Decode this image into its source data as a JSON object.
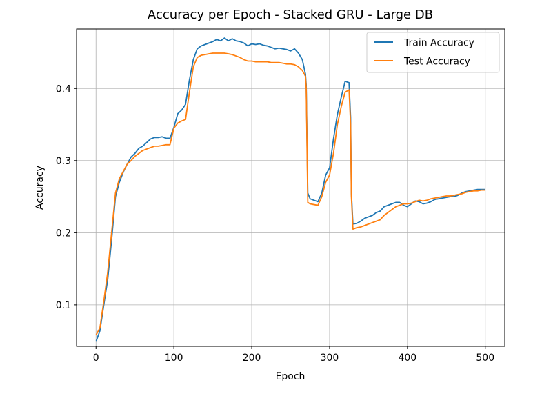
{
  "chart_data": {
    "type": "line",
    "title": "Accuracy per Epoch - Stacked GRU - Large DB",
    "xlabel": "Epoch",
    "ylabel": "Accuracy",
    "xlim": [
      -25,
      525
    ],
    "ylim": [
      0.0425,
      0.4825
    ],
    "xticks": [
      0,
      100,
      200,
      300,
      400,
      500
    ],
    "yticks": [
      0.1,
      0.2,
      0.3,
      0.4
    ],
    "xtick_labels": [
      "0",
      "100",
      "200",
      "300",
      "400",
      "500"
    ],
    "ytick_labels": [
      "0.1",
      "0.2",
      "0.3",
      "0.4"
    ],
    "grid": true,
    "legend_position": "top-right",
    "series": [
      {
        "name": "Train Accuracy",
        "color": "#1f77b4",
        "x": [
          0,
          5,
          10,
          15,
          20,
          25,
          30,
          35,
          40,
          45,
          50,
          55,
          60,
          65,
          70,
          75,
          80,
          85,
          90,
          95,
          100,
          105,
          110,
          115,
          120,
          125,
          130,
          135,
          140,
          145,
          150,
          155,
          160,
          165,
          170,
          175,
          180,
          185,
          190,
          195,
          200,
          205,
          210,
          215,
          220,
          225,
          230,
          235,
          240,
          245,
          250,
          255,
          260,
          265,
          269,
          270,
          271,
          272,
          275,
          280,
          285,
          290,
          295,
          300,
          305,
          310,
          315,
          320,
          325,
          327,
          328,
          330,
          335,
          340,
          345,
          350,
          355,
          360,
          365,
          370,
          375,
          380,
          385,
          390,
          395,
          400,
          405,
          410,
          415,
          420,
          425,
          430,
          435,
          440,
          445,
          450,
          455,
          460,
          465,
          470,
          475,
          480,
          485,
          490,
          495,
          500
        ],
        "y": [
          0.049,
          0.064,
          0.1,
          0.135,
          0.19,
          0.25,
          0.27,
          0.284,
          0.295,
          0.305,
          0.31,
          0.317,
          0.32,
          0.325,
          0.33,
          0.332,
          0.332,
          0.333,
          0.331,
          0.331,
          0.346,
          0.365,
          0.37,
          0.378,
          0.412,
          0.44,
          0.455,
          0.459,
          0.461,
          0.463,
          0.465,
          0.468,
          0.466,
          0.47,
          0.466,
          0.469,
          0.466,
          0.465,
          0.463,
          0.459,
          0.462,
          0.461,
          0.462,
          0.46,
          0.459,
          0.457,
          0.455,
          0.456,
          0.455,
          0.454,
          0.452,
          0.455,
          0.449,
          0.44,
          0.42,
          0.405,
          0.33,
          0.255,
          0.247,
          0.245,
          0.243,
          0.255,
          0.28,
          0.29,
          0.33,
          0.364,
          0.388,
          0.41,
          0.408,
          0.36,
          0.255,
          0.212,
          0.213,
          0.216,
          0.22,
          0.222,
          0.224,
          0.228,
          0.23,
          0.236,
          0.238,
          0.24,
          0.242,
          0.242,
          0.238,
          0.236,
          0.24,
          0.244,
          0.243,
          0.24,
          0.241,
          0.243,
          0.246,
          0.247,
          0.248,
          0.249,
          0.25,
          0.25,
          0.252,
          0.255,
          0.257,
          0.258,
          0.259,
          0.26,
          0.26,
          0.26
        ],
        "label_binding": "legend"
      },
      {
        "name": "Test Accuracy",
        "color": "#ff7f0e",
        "x": [
          0,
          5,
          10,
          15,
          20,
          25,
          30,
          35,
          40,
          45,
          50,
          55,
          60,
          65,
          70,
          75,
          80,
          85,
          90,
          95,
          100,
          105,
          110,
          115,
          120,
          125,
          130,
          135,
          140,
          145,
          150,
          155,
          160,
          165,
          170,
          175,
          180,
          185,
          190,
          195,
          200,
          205,
          210,
          215,
          220,
          225,
          230,
          235,
          240,
          245,
          250,
          255,
          260,
          265,
          269,
          270,
          271,
          272,
          275,
          280,
          285,
          290,
          295,
          300,
          305,
          310,
          315,
          320,
          325,
          327,
          328,
          330,
          335,
          340,
          345,
          350,
          355,
          360,
          365,
          370,
          375,
          380,
          385,
          390,
          395,
          400,
          405,
          410,
          415,
          420,
          425,
          430,
          435,
          440,
          445,
          450,
          455,
          460,
          465,
          470,
          475,
          480,
          485,
          490,
          495,
          500
        ],
        "y": [
          0.058,
          0.068,
          0.105,
          0.145,
          0.2,
          0.255,
          0.275,
          0.285,
          0.295,
          0.3,
          0.306,
          0.31,
          0.314,
          0.316,
          0.318,
          0.32,
          0.32,
          0.321,
          0.322,
          0.322,
          0.345,
          0.352,
          0.355,
          0.357,
          0.395,
          0.43,
          0.443,
          0.446,
          0.447,
          0.448,
          0.449,
          0.449,
          0.449,
          0.449,
          0.448,
          0.447,
          0.445,
          0.443,
          0.44,
          0.438,
          0.438,
          0.437,
          0.437,
          0.437,
          0.437,
          0.436,
          0.436,
          0.436,
          0.435,
          0.434,
          0.434,
          0.433,
          0.43,
          0.425,
          0.417,
          0.4,
          0.32,
          0.242,
          0.24,
          0.239,
          0.238,
          0.25,
          0.27,
          0.28,
          0.31,
          0.35,
          0.375,
          0.395,
          0.398,
          0.35,
          0.25,
          0.205,
          0.207,
          0.208,
          0.21,
          0.212,
          0.214,
          0.216,
          0.218,
          0.224,
          0.228,
          0.232,
          0.236,
          0.238,
          0.24,
          0.24,
          0.241,
          0.243,
          0.245,
          0.244,
          0.245,
          0.247,
          0.248,
          0.249,
          0.25,
          0.251,
          0.251,
          0.252,
          0.253,
          0.254,
          0.256,
          0.257,
          0.258,
          0.258,
          0.259,
          0.259
        ],
        "label_binding": "legend"
      }
    ]
  }
}
